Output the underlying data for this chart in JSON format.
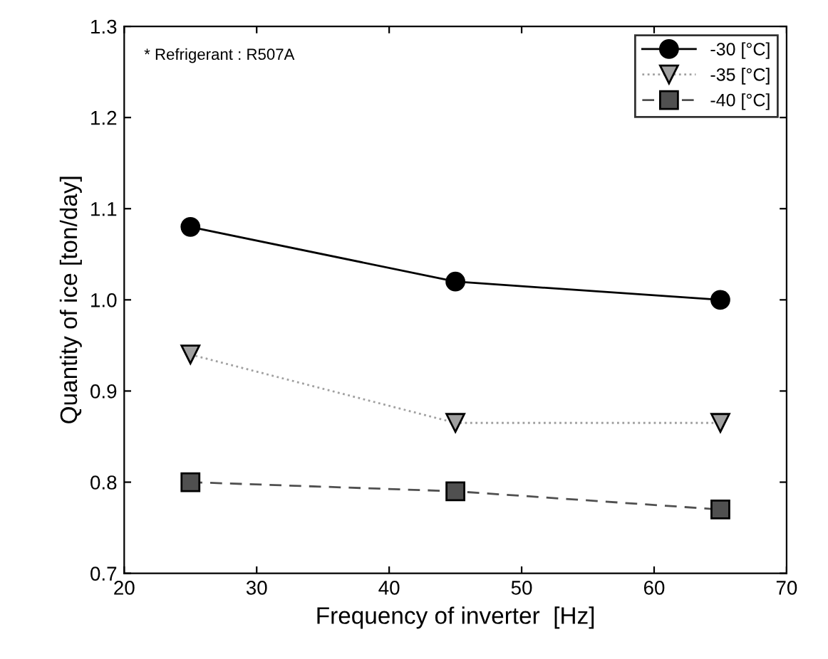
{
  "chart_data": {
    "type": "line",
    "xlabel": "Frequency of inverter  [Hz]",
    "ylabel": "Quantity of ice [ton/day]",
    "x": [
      25,
      45,
      65
    ],
    "series": [
      {
        "name": "-30 [°C]",
        "color": "#000000",
        "marker": "circle",
        "line_style": "solid",
        "values": [
          1.08,
          1.02,
          1.0
        ]
      },
      {
        "name": "-35 [°C]",
        "color": "#a0a0a0",
        "marker": "triangle",
        "line_style": "dotted",
        "values": [
          0.94,
          0.865,
          0.865
        ]
      },
      {
        "name": "-40 [°C]",
        "color": "#505050",
        "marker": "square",
        "line_style": "dashed",
        "values": [
          0.8,
          0.79,
          0.77
        ]
      }
    ],
    "xlim": [
      20,
      70
    ],
    "xticks": [
      20,
      30,
      40,
      50,
      60,
      70
    ],
    "ylim": [
      0.7,
      1.3
    ],
    "yticks": [
      {
        "value": 0.7,
        "label": "0.7"
      },
      {
        "value": 0.8,
        "label": "0.8"
      },
      {
        "value": 0.9,
        "label": "0.9"
      },
      {
        "value": 1.0,
        "label": "1.0"
      },
      {
        "value": 1.1,
        "label": "1.1"
      },
      {
        "value": 1.2,
        "label": "1.2"
      },
      {
        "value": 1.3,
        "label": "1.3"
      }
    ],
    "annotations": [
      "* Refrigerant : R507A"
    ],
    "legend": "top right",
    "grid": false
  }
}
